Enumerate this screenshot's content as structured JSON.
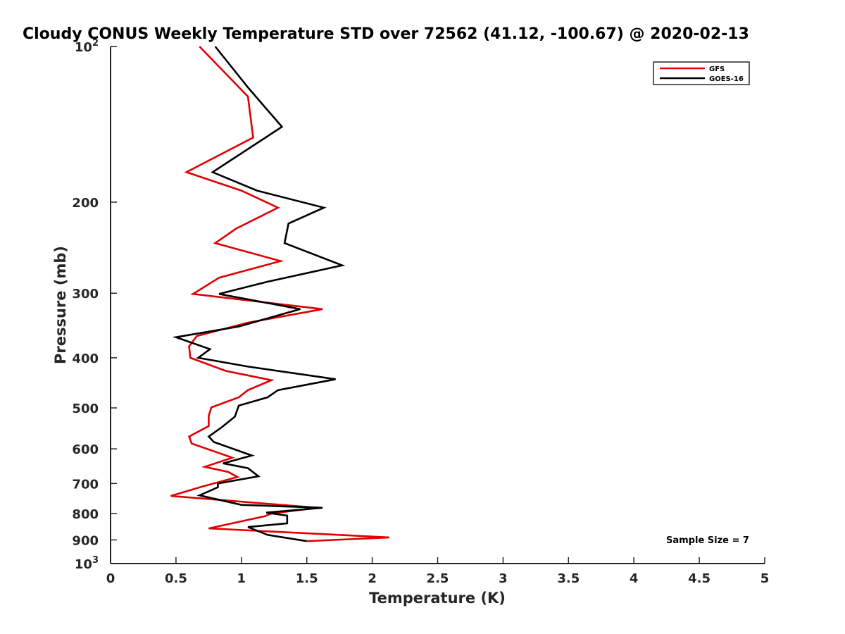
{
  "chart_data": {
    "type": "line",
    "title": "Cloudy CONUS Weekly Temperature STD over 72562 (41.12, -100.67) @ 2020-02-13",
    "xlabel": "Temperature (K)",
    "ylabel": "Pressure (mb)",
    "xlim": [
      0,
      5
    ],
    "ylim": [
      100,
      1000
    ],
    "yscale": "log",
    "y_reversed": true,
    "grid": false,
    "legend_position": "top-right",
    "x_ticks": [
      "0",
      "0.5",
      "1",
      "1.5",
      "2",
      "2.5",
      "3",
      "3.5",
      "4",
      "4.5",
      "5"
    ],
    "y_ticks": [
      {
        "value": 100,
        "base": "10",
        "exp": "2"
      },
      {
        "value": 200,
        "label": "200"
      },
      {
        "value": 300,
        "label": "300"
      },
      {
        "value": 400,
        "label": "400"
      },
      {
        "value": 500,
        "label": "500"
      },
      {
        "value": 600,
        "label": "600"
      },
      {
        "value": 700,
        "label": "700"
      },
      {
        "value": 800,
        "label": "800"
      },
      {
        "value": 900,
        "label": "900"
      },
      {
        "value": 1000,
        "base": "10",
        "exp": "3"
      }
    ],
    "annotation": "Sample Size = 7",
    "series": [
      {
        "name": "GFS",
        "color": "#e00000",
        "points": [
          [
            0.68,
            100
          ],
          [
            1.05,
            125
          ],
          [
            1.09,
            150
          ],
          [
            0.58,
            175
          ],
          [
            1.0,
            190
          ],
          [
            1.28,
            205
          ],
          [
            0.96,
            225
          ],
          [
            0.8,
            240
          ],
          [
            1.3,
            260
          ],
          [
            0.83,
            280
          ],
          [
            0.63,
            301
          ],
          [
            1.62,
            322
          ],
          [
            1.05,
            342
          ],
          [
            0.66,
            363
          ],
          [
            0.6,
            380
          ],
          [
            0.61,
            400
          ],
          [
            0.88,
            424
          ],
          [
            1.23,
            442
          ],
          [
            1.05,
            462
          ],
          [
            0.98,
            477
          ],
          [
            0.77,
            499
          ],
          [
            0.75,
            518
          ],
          [
            0.75,
            542
          ],
          [
            0.6,
            568
          ],
          [
            0.62,
            586
          ],
          [
            0.93,
            624
          ],
          [
            0.72,
            650
          ],
          [
            0.9,
            665
          ],
          [
            0.97,
            680
          ],
          [
            0.7,
            710
          ],
          [
            0.46,
            740
          ],
          [
            1.58,
            780
          ],
          [
            1.23,
            800
          ],
          [
            1.18,
            810
          ],
          [
            0.75,
            855
          ],
          [
            2.13,
            890
          ],
          [
            1.5,
            905
          ]
        ]
      },
      {
        "name": "GOES-16",
        "color": "#000000",
        "points": [
          [
            0.8,
            100
          ],
          [
            1.05,
            120
          ],
          [
            1.31,
            143
          ],
          [
            0.78,
            175
          ],
          [
            1.12,
            190
          ],
          [
            1.63,
            205
          ],
          [
            1.36,
            220
          ],
          [
            1.33,
            240
          ],
          [
            1.77,
            265
          ],
          [
            1.2,
            285
          ],
          [
            0.83,
            301
          ],
          [
            1.45,
            322
          ],
          [
            0.98,
            348
          ],
          [
            0.5,
            365
          ],
          [
            0.76,
            385
          ],
          [
            0.67,
            400
          ],
          [
            1.05,
            416
          ],
          [
            1.72,
            440
          ],
          [
            1.28,
            462
          ],
          [
            1.2,
            477
          ],
          [
            0.98,
            495
          ],
          [
            0.95,
            520
          ],
          [
            0.85,
            545
          ],
          [
            0.75,
            568
          ],
          [
            0.79,
            582
          ],
          [
            1.08,
            618
          ],
          [
            0.86,
            640
          ],
          [
            1.05,
            654
          ],
          [
            1.13,
            678
          ],
          [
            0.82,
            700
          ],
          [
            0.82,
            712
          ],
          [
            0.68,
            738
          ],
          [
            1.0,
            770
          ],
          [
            1.62,
            780
          ],
          [
            1.19,
            797
          ],
          [
            1.35,
            808
          ],
          [
            1.35,
            836
          ],
          [
            1.05,
            850
          ],
          [
            1.2,
            880
          ],
          [
            1.5,
            905
          ]
        ]
      }
    ]
  }
}
